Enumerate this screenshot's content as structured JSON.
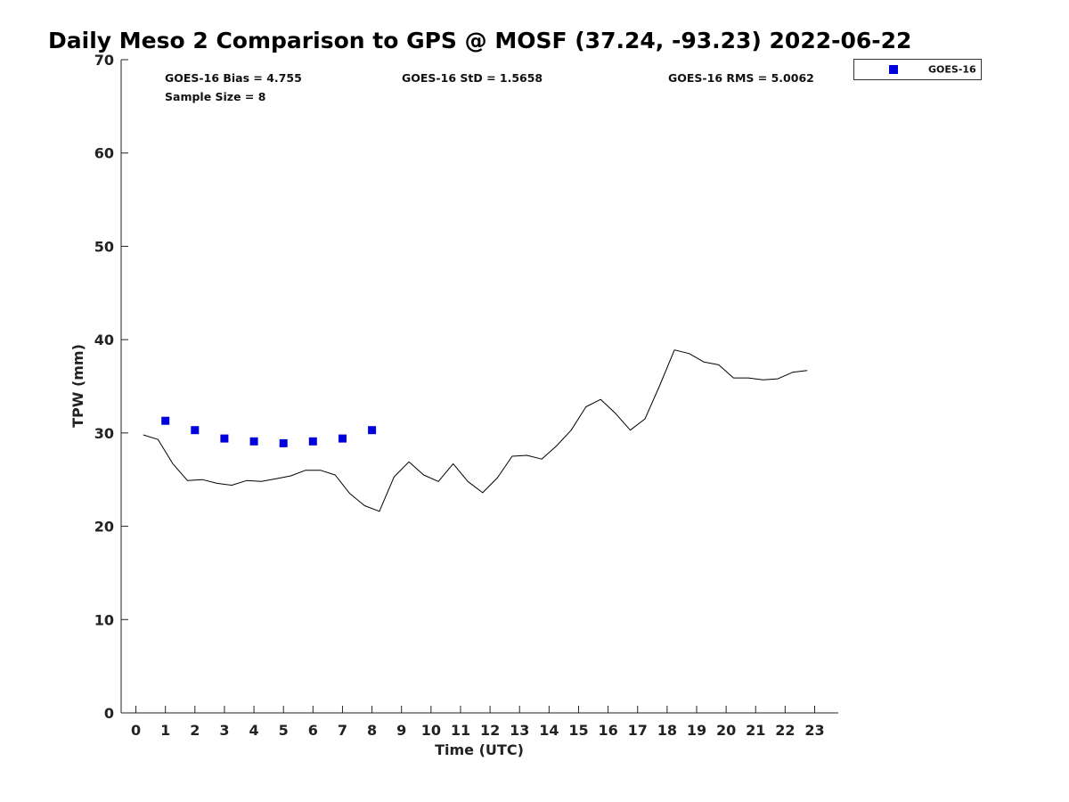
{
  "chart_data": {
    "type": "line",
    "title": "Daily Meso 2 Comparison to GPS @ MOSF (37.24, -93.23) 2022-06-22",
    "xlabel": "Time (UTC)",
    "ylabel": "TPW (mm)",
    "xlim": [
      -0.5,
      23.8
    ],
    "ylim": [
      0,
      70
    ],
    "x_ticks": [
      "0",
      "1",
      "2",
      "3",
      "4",
      "5",
      "6",
      "7",
      "8",
      "9",
      "10",
      "11",
      "12",
      "13",
      "14",
      "15",
      "16",
      "17",
      "18",
      "19",
      "20",
      "21",
      "22",
      "23"
    ],
    "y_ticks": [
      "0",
      "10",
      "20",
      "30",
      "40",
      "50",
      "60",
      "70"
    ],
    "grid": false,
    "legend_position": "outside-top-right",
    "stats": {
      "bias": "GOES-16 Bias = 4.755",
      "std": "GOES-16 StD = 1.5658",
      "rms": "GOES-16 RMS = 5.0062",
      "sample": "Sample Size = 8"
    },
    "series": [
      {
        "kind": "line",
        "color": "#000000",
        "x": [
          0.25,
          0.75,
          1.25,
          1.75,
          2.25,
          2.75,
          3.25,
          3.75,
          4.25,
          4.75,
          5.25,
          5.75,
          6.25,
          6.75,
          7.25,
          7.75,
          8.25,
          8.75,
          9.25,
          9.75,
          10.25,
          10.75,
          11.25,
          11.75,
          12.25,
          12.75,
          13.25,
          13.75,
          14.25,
          14.75,
          15.25,
          15.75,
          16.25,
          16.75,
          17.25,
          17.75,
          18.25,
          18.75,
          19.25,
          19.75,
          20.25,
          20.75,
          21.25,
          21.75,
          22.25,
          22.75
        ],
        "y": [
          29.8,
          29.3,
          26.7,
          24.9,
          25.0,
          24.6,
          24.4,
          24.9,
          24.8,
          25.1,
          25.4,
          26.0,
          26.0,
          25.5,
          23.5,
          22.2,
          21.6,
          25.3,
          26.9,
          25.5,
          24.8,
          26.7,
          24.8,
          23.6,
          25.2,
          27.5,
          27.6,
          27.2,
          28.6,
          30.3,
          32.8,
          33.6,
          32.1,
          30.3,
          31.5,
          35.1,
          38.9,
          38.5,
          37.6,
          37.3,
          35.9,
          35.9,
          35.7,
          35.8,
          36.5,
          36.7
        ]
      },
      {
        "name": "GOES-16",
        "kind": "scatter",
        "color": "#0000dd",
        "x": [
          1,
          2,
          3,
          4,
          5,
          6,
          7,
          8
        ],
        "y": [
          31.3,
          30.3,
          29.4,
          29.1,
          28.9,
          29.1,
          29.4,
          30.3
        ]
      }
    ]
  }
}
